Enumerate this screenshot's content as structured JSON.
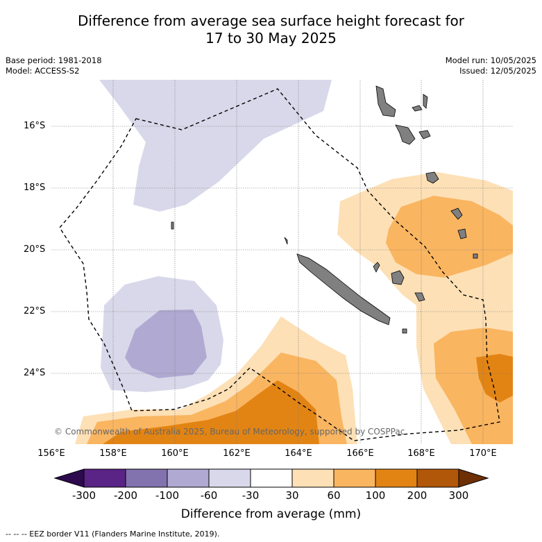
{
  "title": {
    "line1": "Difference from average sea surface height forecast for",
    "line2": "17 to 30 May 2025"
  },
  "meta_left": {
    "base_period": "Base period: 1981-2018",
    "model": "Model: ACCESS-S2"
  },
  "meta_right": {
    "model_run": "Model run: 10/05/2025",
    "issued": "Issued: 12/05/2025"
  },
  "map": {
    "lat_labels": [
      "16°S",
      "18°S",
      "20°S",
      "22°S",
      "24°S"
    ],
    "lon_labels": [
      "156°E",
      "158°E",
      "160°E",
      "162°E",
      "164°E",
      "166°E",
      "168°E",
      "170°E"
    ],
    "copyright": "© Commonwealth of Australia 2025, Bureau of Meteorology, supported by COSPPac"
  },
  "colorbar": {
    "title": "Difference from average (mm)",
    "ticks": [
      "-300",
      "-200",
      "-100",
      "-60",
      "-30",
      "30",
      "60",
      "100",
      "200",
      "300"
    ],
    "colors": [
      "#2d0a4e",
      "#5a2386",
      "#8272ae",
      "#b0a9d2",
      "#d8d8ea",
      "#ffffff",
      "#fde0b6",
      "#fab560",
      "#e28414",
      "#b15709",
      "#6e2f05"
    ]
  },
  "footer": "-- -- -- EEZ border V11 (Flanders Marine Institute, 2019)."
}
